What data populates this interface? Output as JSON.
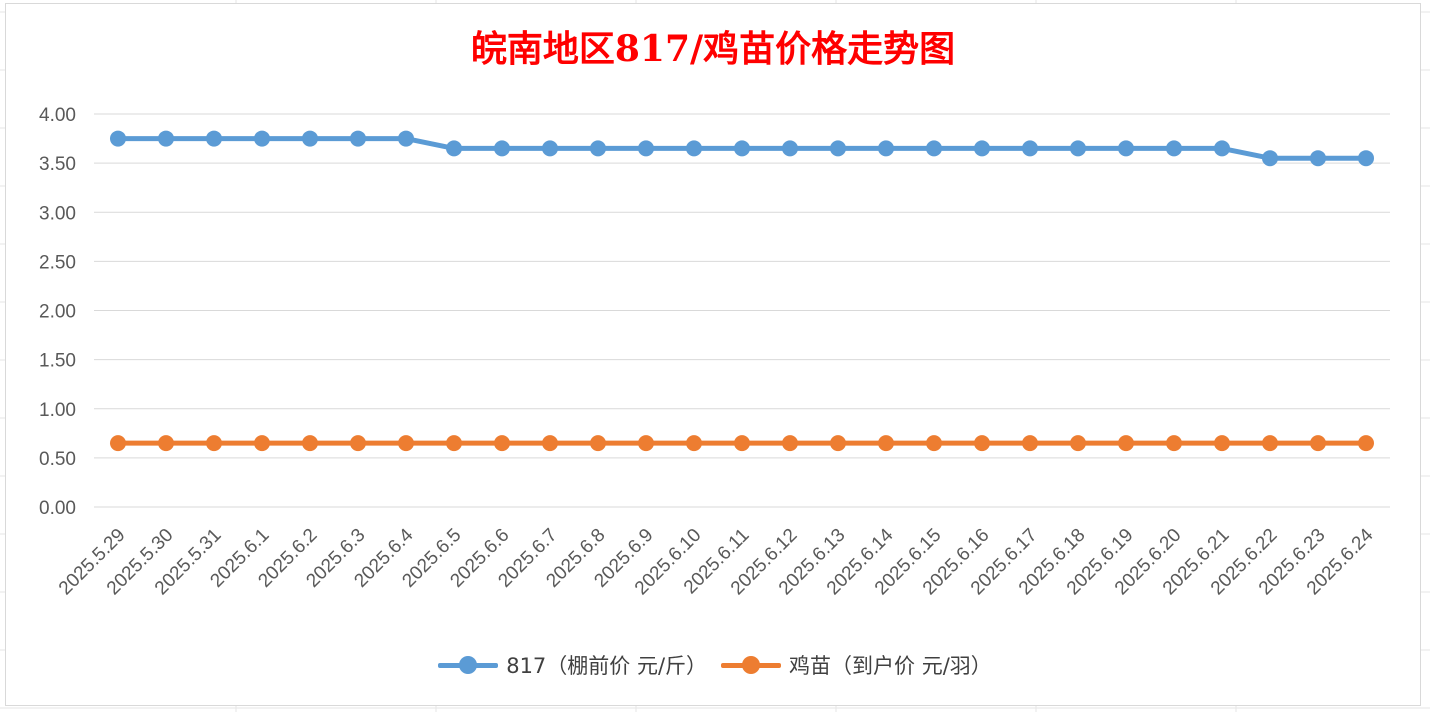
{
  "chart_data": {
    "type": "line",
    "title": "皖南地区817/鸡苗价格走势图",
    "categories": [
      "2025.5.29",
      "2025.5.30",
      "2025.5.31",
      "2025.6.1",
      "2025.6.2",
      "2025.6.3",
      "2025.6.4",
      "2025.6.5",
      "2025.6.6",
      "2025.6.7",
      "2025.6.8",
      "2025.6.9",
      "2025.6.10",
      "2025.6.11",
      "2025.6.12",
      "2025.6.13",
      "2025.6.14",
      "2025.6.15",
      "2025.6.16",
      "2025.6.17",
      "2025.6.18",
      "2025.6.19",
      "2025.6.20",
      "2025.6.21",
      "2025.6.22",
      "2025.6.23",
      "2025.6.24"
    ],
    "series": [
      {
        "name": "817（棚前价 元/斤）",
        "color": "#5b9bd5",
        "values": [
          3.75,
          3.75,
          3.75,
          3.75,
          3.75,
          3.75,
          3.75,
          3.65,
          3.65,
          3.65,
          3.65,
          3.65,
          3.65,
          3.65,
          3.65,
          3.65,
          3.65,
          3.65,
          3.65,
          3.65,
          3.65,
          3.65,
          3.65,
          3.65,
          3.55,
          3.55,
          3.55
        ]
      },
      {
        "name": "鸡苗（到户价 元/羽）",
        "color": "#ed7d31",
        "values": [
          0.65,
          0.65,
          0.65,
          0.65,
          0.65,
          0.65,
          0.65,
          0.65,
          0.65,
          0.65,
          0.65,
          0.65,
          0.65,
          0.65,
          0.65,
          0.65,
          0.65,
          0.65,
          0.65,
          0.65,
          0.65,
          0.65,
          0.65,
          0.65,
          0.65,
          0.65,
          0.65
        ]
      }
    ],
    "yticks": [
      "0.00",
      "0.50",
      "1.00",
      "1.50",
      "2.00",
      "2.50",
      "3.00",
      "3.50",
      "4.00"
    ],
    "ylim": [
      0,
      4
    ],
    "grid": true,
    "legend_position": "bottom"
  }
}
